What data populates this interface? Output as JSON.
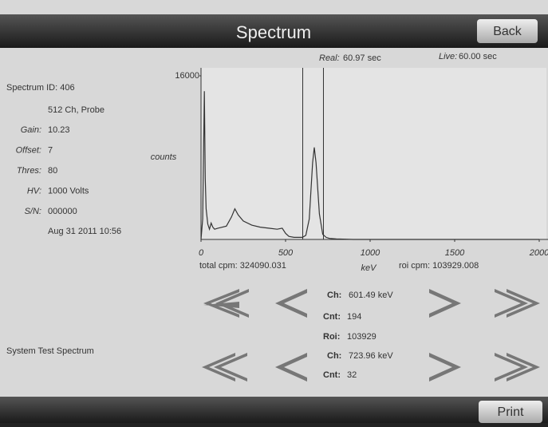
{
  "header": {
    "title": "Spectrum",
    "back_button": "Back"
  },
  "info": {
    "spectrum_id": "Spectrum ID: 406",
    "channels": "512 Ch, Probe",
    "rows": [
      {
        "label": "Gain:",
        "value": "10.23"
      },
      {
        "label": "Offset:",
        "value": "7"
      },
      {
        "label": "Thres:",
        "value": "80"
      },
      {
        "label": "HV:",
        "value": "1000 Volts"
      },
      {
        "label": "S/N:",
        "value": "000000"
      }
    ],
    "date": "Aug 31 2011 10:56",
    "name": "System Test Spectrum"
  },
  "times": {
    "real_label": "Real:",
    "real_value": "60.97 sec",
    "live_label": "Live:",
    "live_value": "60.00 sec"
  },
  "totals": {
    "total_cpm": "total cpm: 324090.031",
    "roi_cpm": "roi cpm: 103929.008"
  },
  "cursor1": {
    "ch_label": "Ch:",
    "ch_value": "601.49 keV",
    "cnt_label": "Cnt:",
    "cnt_value": "194"
  },
  "roi": {
    "label": "Roi:",
    "value": "103929"
  },
  "cursor2": {
    "ch_label": "Ch:",
    "ch_value": "723.96 keV",
    "cnt_label": "Cnt:",
    "cnt_value": "32"
  },
  "footer": {
    "print_button": "Print"
  },
  "chart_data": {
    "type": "line",
    "xlabel": "keV",
    "ylabel": "counts",
    "xlim": [
      0,
      2000
    ],
    "xticks": [
      0,
      500,
      1000,
      1500,
      2000
    ],
    "ylim": [
      0,
      16000
    ],
    "yticks": [
      16000
    ],
    "color": "#333333",
    "roi_markers": [
      601.49,
      723.96
    ],
    "x": [
      0,
      10,
      20,
      25,
      30,
      40,
      50,
      60,
      70,
      80,
      100,
      150,
      180,
      200,
      220,
      250,
      300,
      350,
      400,
      450,
      480,
      500,
      520,
      550,
      600,
      620,
      640,
      660,
      670,
      680,
      700,
      720,
      740,
      760,
      800,
      900,
      1000,
      2000
    ],
    "values": [
      0,
      2000,
      14500,
      6000,
      3000,
      1500,
      1000,
      1600,
      1200,
      1000,
      1100,
      1300,
      2200,
      3000,
      2400,
      1800,
      1400,
      1200,
      1100,
      1000,
      1100,
      600,
      300,
      200,
      200,
      400,
      2000,
      7500,
      9000,
      7500,
      2500,
      500,
      200,
      100,
      50,
      0,
      0,
      0
    ]
  }
}
